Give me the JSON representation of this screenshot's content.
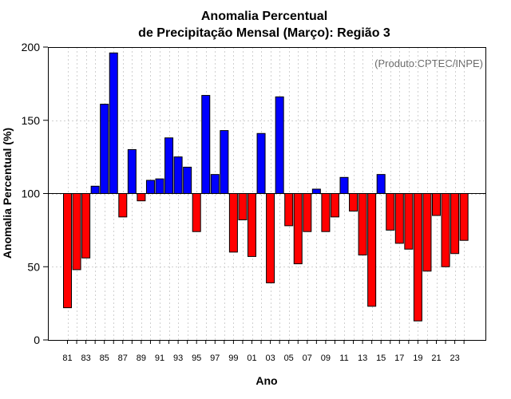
{
  "chart_data": {
    "type": "bar",
    "title_line1": "Anomalia Percentual",
    "title_line2": "de Precipitação Mensal (Março): Região 3",
    "xlabel": "Ano",
    "ylabel": "Anomalia Percentual (%)",
    "annotation": "(Produto:CPTEC/INPE)",
    "baseline": 100,
    "ylim": [
      0,
      200
    ],
    "yticks": [
      0,
      50,
      100,
      150,
      200
    ],
    "above_color": "#0000ff",
    "below_color": "#ff0000",
    "categories": [
      "1981",
      "1982",
      "1983",
      "1984",
      "1985",
      "1986",
      "1987",
      "1988",
      "1989",
      "1990",
      "1991",
      "1992",
      "1993",
      "1994",
      "1995",
      "1996",
      "1997",
      "1998",
      "1999",
      "2000",
      "2001",
      "2002",
      "2003",
      "2004",
      "2005",
      "2006",
      "2007",
      "2008",
      "2009",
      "2010",
      "2011",
      "2012",
      "2013",
      "2014",
      "2015",
      "2016",
      "2017",
      "2018",
      "2019",
      "2020",
      "2021",
      "2022",
      "2023",
      "2024"
    ],
    "values": [
      22,
      48,
      56,
      105,
      161,
      196,
      84,
      130,
      95,
      109,
      110,
      138,
      125,
      118,
      74,
      167,
      113,
      143,
      60,
      82,
      57,
      141,
      39,
      166,
      78,
      52,
      74,
      103,
      74,
      84,
      111,
      88,
      58,
      23,
      113,
      75,
      66,
      62,
      13,
      47,
      85,
      50,
      59,
      68
    ],
    "xtick_labels": [
      "81",
      "83",
      "85",
      "87",
      "89",
      "91",
      "93",
      "95",
      "97",
      "99",
      "01",
      "03",
      "05",
      "07",
      "09",
      "11",
      "13",
      "15",
      "17",
      "19",
      "21",
      "23"
    ]
  }
}
